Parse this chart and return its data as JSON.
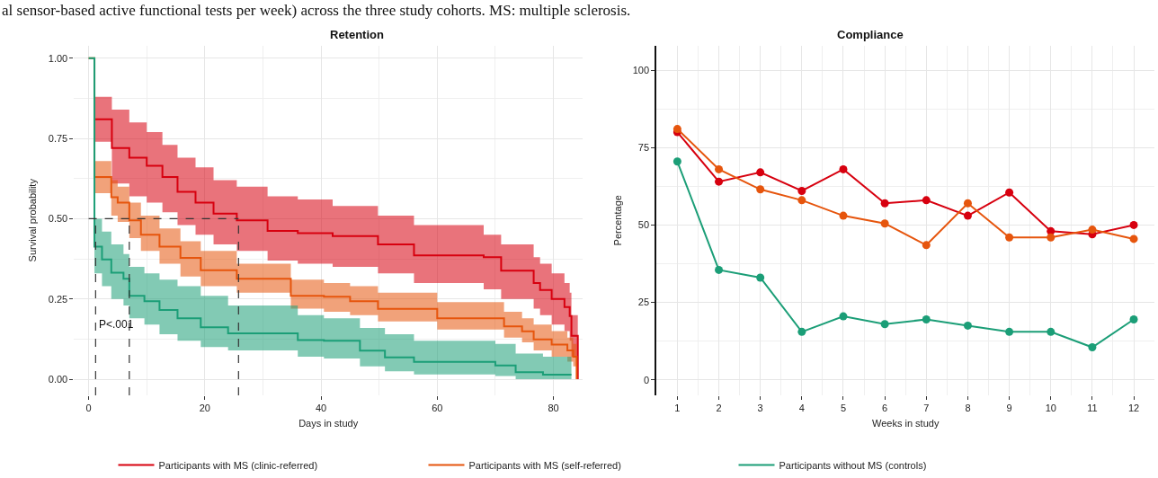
{
  "chart_data": [
    {
      "type": "step",
      "title": "Retention",
      "xlabel": "Days in study",
      "ylabel": "Survival probability",
      "annotations": [
        "al sensor-based active functional tests per week) across the three study cohorts. MS: multiple sclerosis.",
        {
          "text": "P<.001",
          "x": 1.5,
          "y": 0.17
        }
      ],
      "xlim": [
        -2.5,
        85
      ],
      "xticks": [
        0,
        20,
        40,
        60,
        80
      ],
      "ylim": [
        -0.05,
        1.04
      ],
      "yticks": [
        {
          "value": 0,
          "label": "0.00"
        },
        {
          "value": 0.25,
          "label": "0.25"
        },
        {
          "value": 0.5,
          "label": "0.50"
        },
        {
          "value": 0.75,
          "label": "0.75"
        },
        {
          "value": 1,
          "label": "1.00"
        }
      ],
      "grid": true,
      "legend": "bottom",
      "ref_lines": [
        {
          "axis": "y",
          "value": 0.5,
          "label": null,
          "line_style": "dashed"
        },
        {
          "axis": "x",
          "value": 1.2,
          "label": null,
          "line_style": "dashed"
        },
        {
          "axis": "x",
          "value": 7,
          "label": null,
          "line_style": "dashed"
        },
        {
          "axis": "x",
          "value": 25.8,
          "label": null,
          "line_style": "dashed"
        }
      ],
      "series": [
        {
          "name": "Participants with MS (clinic-referred)",
          "color": "#d7000f",
          "x": [
            0,
            1,
            4,
            7,
            10,
            12.7,
            15.3,
            18.4,
            21.5,
            25.5,
            30.8,
            36,
            42,
            49.8,
            56,
            68,
            71,
            76.6,
            77.7,
            79.7,
            81.9,
            82.8,
            83.1,
            84.2
          ],
          "values": [
            null,
            0.81,
            0.72,
            0.69,
            0.665,
            0.63,
            0.584,
            0.55,
            0.516,
            0.495,
            0.462,
            0.455,
            0.446,
            0.42,
            0.386,
            0.38,
            0.338,
            0.3,
            0.278,
            0.25,
            0.225,
            0.197,
            0.135,
            0.0
          ],
          "upper": [
            1,
            0.88,
            0.84,
            0.8,
            0.77,
            0.73,
            0.69,
            0.66,
            0.62,
            0.6,
            0.57,
            0.56,
            0.54,
            0.51,
            0.48,
            0.45,
            0.42,
            0.38,
            0.36,
            0.33,
            0.3,
            0.27,
            0.2,
            0.0
          ],
          "lower": [
            1,
            0.74,
            0.61,
            0.57,
            0.55,
            0.52,
            0.48,
            0.45,
            0.42,
            0.4,
            0.37,
            0.36,
            0.35,
            0.33,
            0.3,
            0.28,
            0.25,
            0.22,
            0.2,
            0.17,
            0.15,
            0.12,
            0.07,
            0.0
          ]
        },
        {
          "name": "Participants with MS (self-referred)",
          "color": "#e6550d",
          "x": [
            0,
            1,
            3.9,
            5,
            7,
            9,
            12.2,
            15.8,
            19.3,
            25.5,
            34.8,
            40.5,
            45,
            49.8,
            60,
            71.5,
            74.6,
            76.6,
            79.7,
            82.4,
            83.4,
            84
          ],
          "values": [
            1,
            0.63,
            0.567,
            0.55,
            0.495,
            0.45,
            0.413,
            0.378,
            0.34,
            0.313,
            0.26,
            0.257,
            0.243,
            0.219,
            0.19,
            0.165,
            0.149,
            0.124,
            0.108,
            0.09,
            0.07,
            0.0
          ],
          "upper": [
            1,
            0.68,
            0.62,
            0.6,
            0.55,
            0.51,
            0.47,
            0.43,
            0.4,
            0.36,
            0.31,
            0.3,
            0.29,
            0.27,
            0.24,
            0.21,
            0.19,
            0.17,
            0.15,
            0.13,
            0.11,
            0.0
          ],
          "lower": [
            1,
            0.58,
            0.51,
            0.49,
            0.44,
            0.4,
            0.36,
            0.32,
            0.29,
            0.27,
            0.22,
            0.21,
            0.2,
            0.18,
            0.155,
            0.13,
            0.115,
            0.09,
            0.07,
            0.055,
            0.04,
            0.0
          ]
        },
        {
          "name": "Participants without MS (controls)",
          "color": "#1b9e77",
          "x": [
            0,
            1,
            2.3,
            3.9,
            6,
            7,
            9.6,
            12.2,
            15.3,
            19.3,
            24,
            36,
            40.5,
            46.7,
            51,
            56,
            70,
            73.5,
            78.2,
            83.1
          ],
          "values": [
            1,
            0.413,
            0.373,
            0.332,
            0.313,
            0.26,
            0.243,
            0.216,
            0.19,
            0.162,
            0.143,
            0.122,
            0.12,
            0.089,
            0.068,
            0.054,
            0.043,
            0.022,
            0.014,
            0.014
          ],
          "upper": [
            1,
            0.5,
            0.46,
            0.42,
            0.39,
            0.35,
            0.33,
            0.31,
            0.29,
            0.26,
            0.23,
            0.2,
            0.19,
            0.16,
            0.14,
            0.12,
            0.11,
            0.08,
            0.07,
            0.07
          ],
          "lower": [
            1,
            0.33,
            0.29,
            0.25,
            0.23,
            0.19,
            0.17,
            0.14,
            0.12,
            0.1,
            0.09,
            0.07,
            0.065,
            0.04,
            0.025,
            0.015,
            0.01,
            0.0,
            0.0,
            0.0
          ]
        }
      ]
    },
    {
      "type": "line",
      "title": "Compliance",
      "xlabel": "Weeks in study",
      "ylabel": "Percentage",
      "x": [
        1,
        2,
        3,
        4,
        5,
        6,
        7,
        8,
        9,
        10,
        11,
        12
      ],
      "xlim": [
        0.5,
        12.5
      ],
      "xticks": [
        1,
        2,
        3,
        4,
        5,
        6,
        7,
        8,
        9,
        10,
        11,
        12
      ],
      "ylim": [
        -5,
        108
      ],
      "yticks": [
        0,
        25,
        50,
        75,
        100
      ],
      "grid": true,
      "marker": "circle",
      "line_style": "solid",
      "series": [
        {
          "color": "#d7000f",
          "values": [
            80,
            64,
            67,
            61,
            68,
            57,
            58,
            53,
            60.5,
            48,
            47,
            50
          ]
        },
        {
          "color": "#e6550d",
          "values": [
            81,
            68,
            61.5,
            58,
            53,
            50.5,
            43.5,
            57,
            46,
            46,
            48.5,
            45.5
          ]
        },
        {
          "color": "#1b9e77",
          "values": [
            70.5,
            35.5,
            33,
            15.5,
            20.5,
            18,
            19.5,
            17.5,
            15.5,
            15.5,
            10.5,
            19.5
          ]
        }
      ]
    }
  ]
}
